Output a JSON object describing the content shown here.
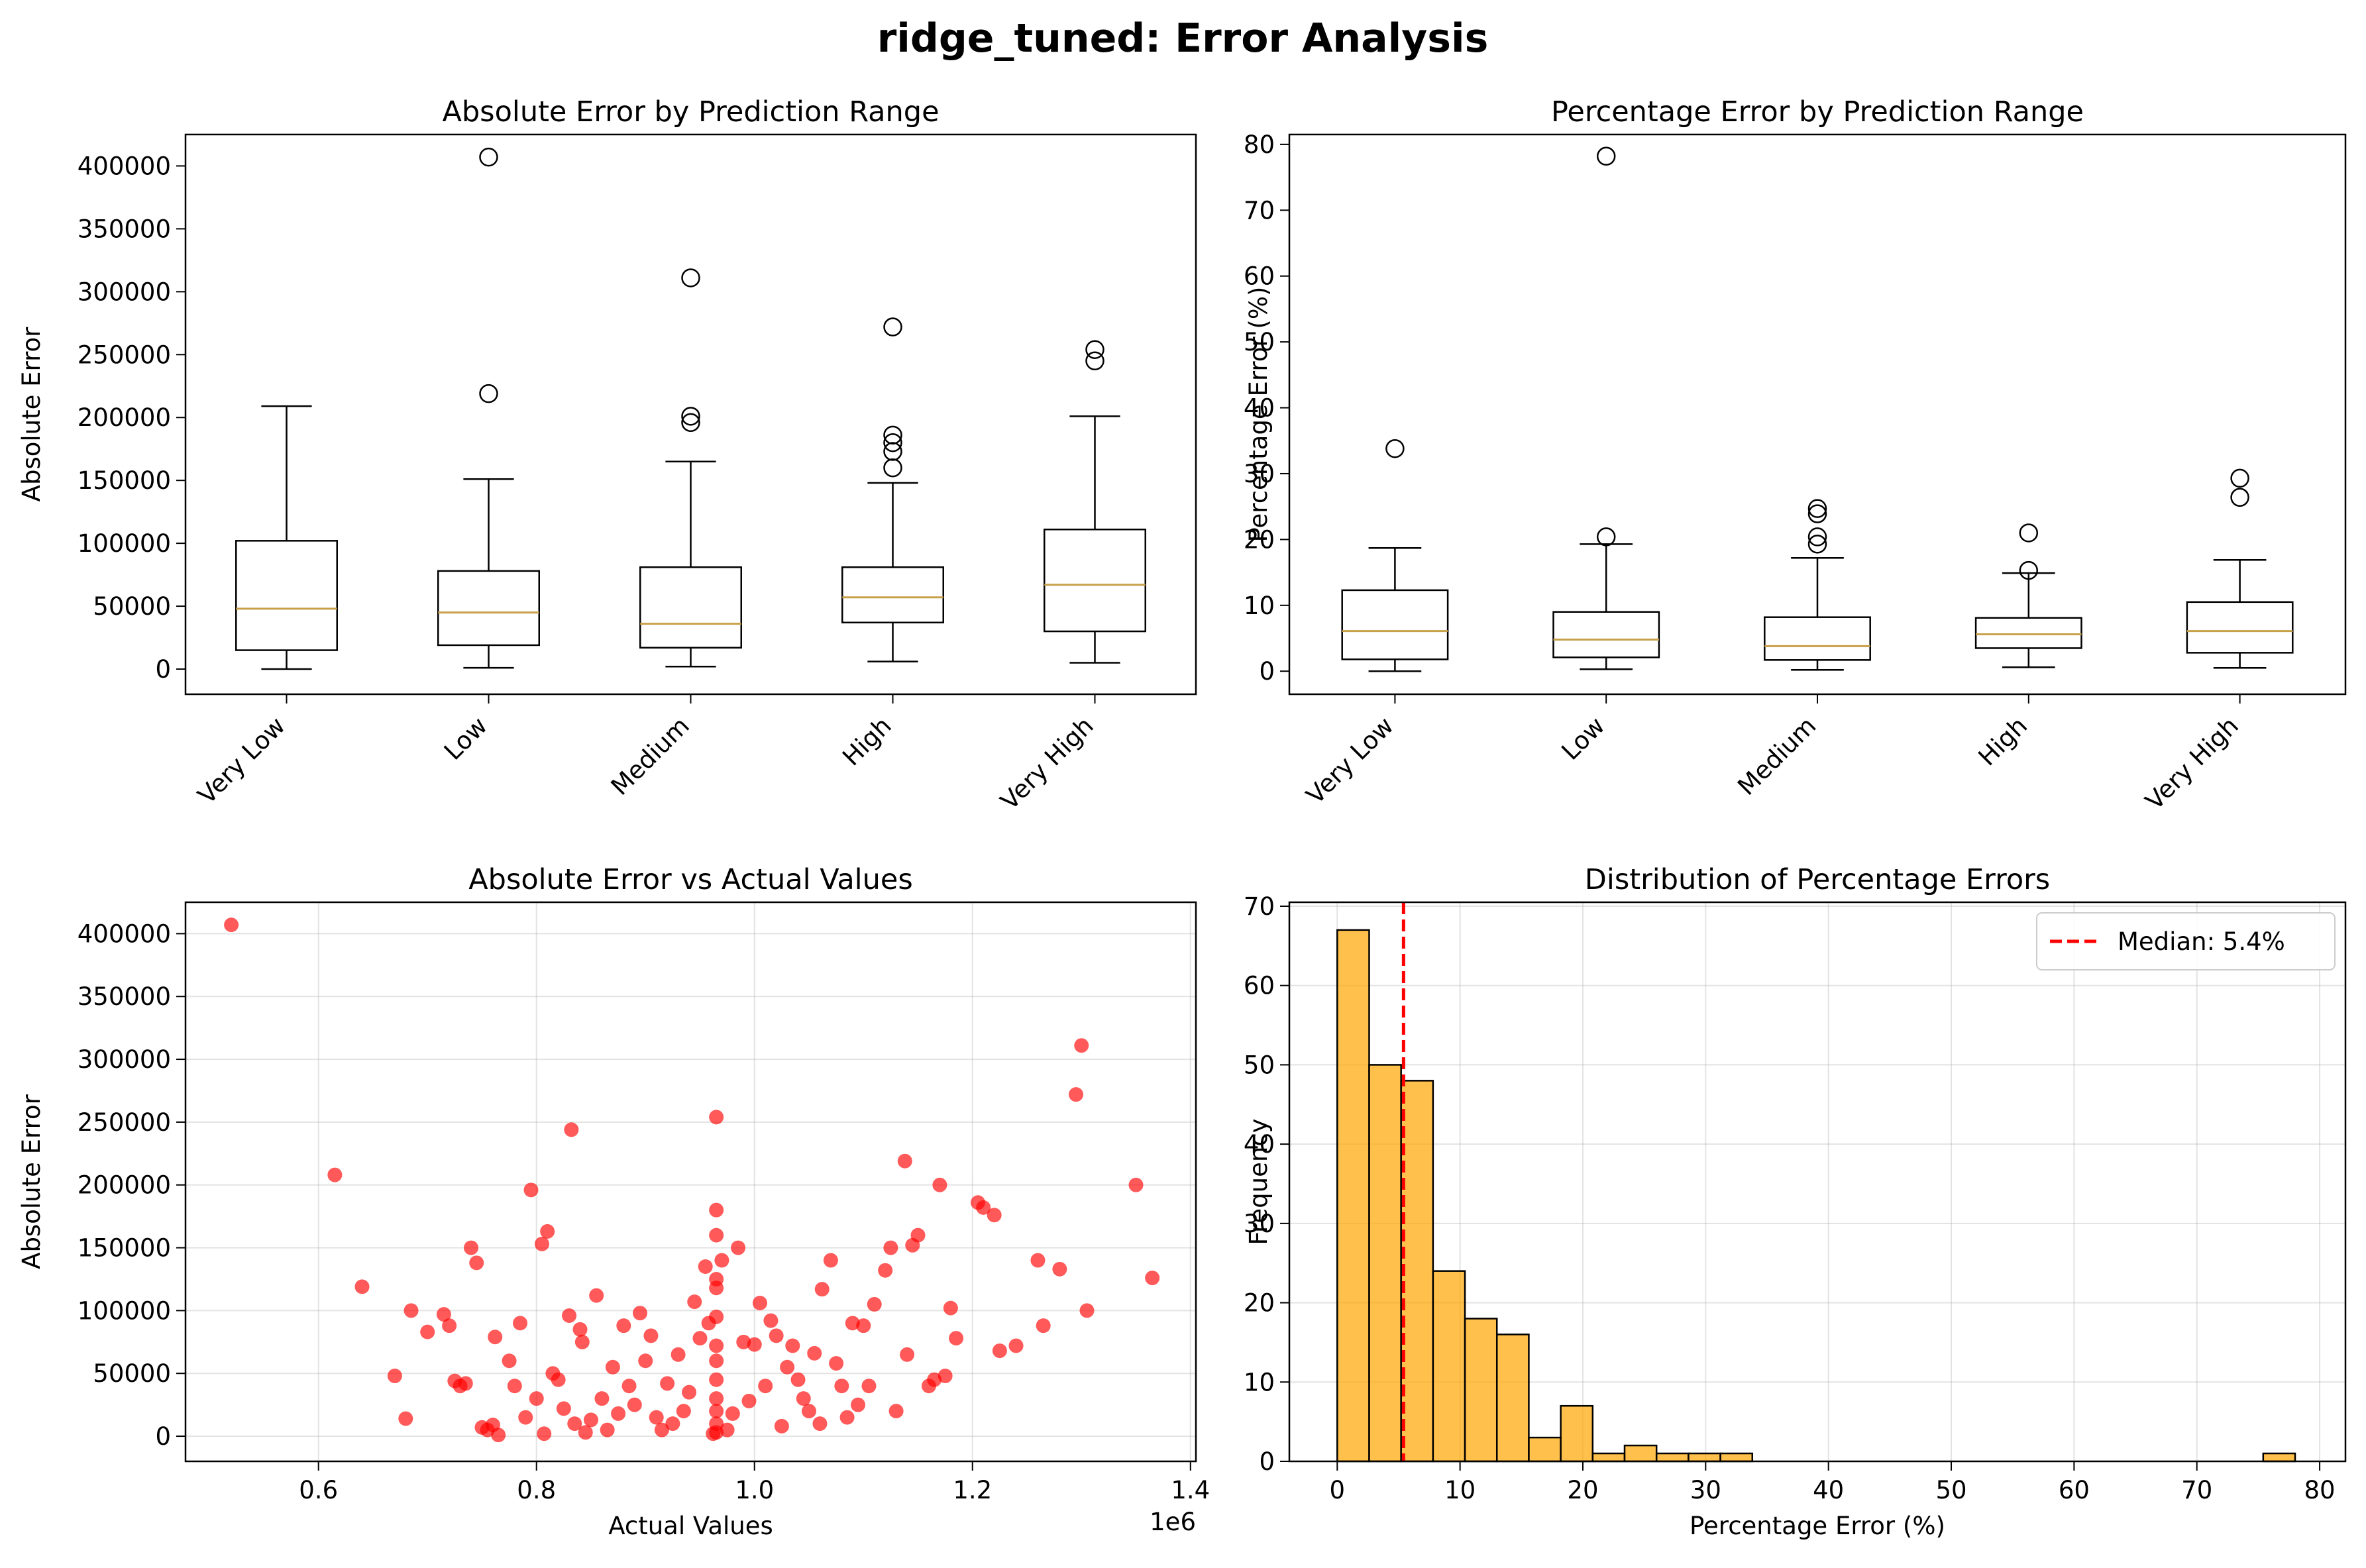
{
  "figure_title": "ridge_tuned: Error Analysis",
  "chart_data": [
    {
      "type": "box",
      "title": "Absolute Error by Prediction Range",
      "xlabel": "",
      "ylabel": "Absolute Error",
      "ylim": [
        -20000,
        425000
      ],
      "yticks": [
        0,
        50000,
        100000,
        150000,
        200000,
        250000,
        300000,
        350000,
        400000
      ],
      "grid": false,
      "categories": [
        "Very Low",
        "Low",
        "Medium",
        "High",
        "Very High"
      ],
      "boxes": [
        {
          "whislo": 0,
          "q1": 15000,
          "med": 48000,
          "q3": 102000,
          "whishi": 209000,
          "fliers": []
        },
        {
          "whislo": 1000,
          "q1": 19000,
          "med": 45000,
          "q3": 78000,
          "whishi": 151000,
          "fliers": [
            219000,
            407000
          ]
        },
        {
          "whislo": 2000,
          "q1": 17000,
          "med": 36000,
          "q3": 81000,
          "whishi": 165000,
          "fliers": [
            196000,
            201000,
            311000
          ]
        },
        {
          "whislo": 6000,
          "q1": 37000,
          "med": 57000,
          "q3": 81000,
          "whishi": 148000,
          "fliers": [
            160000,
            173000,
            180000,
            186000,
            272000
          ]
        },
        {
          "whislo": 5000,
          "q1": 30000,
          "med": 67000,
          "q3": 111000,
          "whishi": 201000,
          "fliers": [
            245000,
            254000
          ]
        }
      ]
    },
    {
      "type": "box",
      "title": "Percentage Error by Prediction Range",
      "xlabel": "",
      "ylabel": "Percentage Error (%)",
      "ylim": [
        -3.5,
        81.5
      ],
      "yticks": [
        0,
        10,
        20,
        30,
        40,
        50,
        60,
        70,
        80
      ],
      "grid": false,
      "categories": [
        "Very Low",
        "Low",
        "Medium",
        "High",
        "Very High"
      ],
      "boxes": [
        {
          "whislo": 0,
          "q1": 1.8,
          "med": 6.1,
          "q3": 12.3,
          "whishi": 18.7,
          "fliers": [
            33.8
          ]
        },
        {
          "whislo": 0.3,
          "q1": 2.1,
          "med": 4.8,
          "q3": 9.0,
          "whishi": 19.3,
          "fliers": [
            20.4,
            78.2
          ]
        },
        {
          "whislo": 0.2,
          "q1": 1.7,
          "med": 3.8,
          "q3": 8.2,
          "whishi": 17.2,
          "fliers": [
            19.3,
            20.4,
            23.9,
            24.7
          ]
        },
        {
          "whislo": 0.6,
          "q1": 3.5,
          "med": 5.6,
          "q3": 8.1,
          "whishi": 14.9,
          "fliers": [
            15.3,
            21.0
          ]
        },
        {
          "whislo": 0.5,
          "q1": 2.8,
          "med": 6.1,
          "q3": 10.5,
          "whishi": 16.9,
          "fliers": [
            26.4,
            29.3
          ]
        }
      ]
    },
    {
      "type": "scatter",
      "title": "Absolute Error vs Actual Values",
      "xlabel": "Actual Values",
      "ylabel": "Absolute Error",
      "x_scale_label": "1e6",
      "xlim": [
        0.478,
        1.405
      ],
      "ylim": [
        -20000,
        425000
      ],
      "xticks": [
        0.6,
        0.8,
        1.0,
        1.2,
        1.4
      ],
      "xtick_labels": [
        "0.6",
        "0.8",
        "1.0",
        "1.2",
        "1.4"
      ],
      "yticks": [
        0,
        50000,
        100000,
        150000,
        200000,
        250000,
        300000,
        350000,
        400000
      ],
      "grid": true,
      "color": "#ff0000",
      "points": [
        [
          0.52,
          407000
        ],
        [
          0.615,
          208000
        ],
        [
          0.64,
          119000
        ],
        [
          0.67,
          48000
        ],
        [
          0.68,
          14000
        ],
        [
          0.685,
          100000
        ],
        [
          0.7,
          83000
        ],
        [
          0.715,
          97000
        ],
        [
          0.72,
          88000
        ],
        [
          0.725,
          44000
        ],
        [
          0.73,
          40000
        ],
        [
          0.735,
          42000
        ],
        [
          0.74,
          150000
        ],
        [
          0.745,
          138000
        ],
        [
          0.75,
          7000
        ],
        [
          0.755,
          5000
        ],
        [
          0.76,
          9000
        ],
        [
          0.762,
          79000
        ],
        [
          0.765,
          1000
        ],
        [
          0.775,
          60000
        ],
        [
          0.78,
          40000
        ],
        [
          0.785,
          90000
        ],
        [
          0.79,
          15000
        ],
        [
          0.795,
          196000
        ],
        [
          0.8,
          30000
        ],
        [
          0.805,
          153000
        ],
        [
          0.807,
          2000
        ],
        [
          0.81,
          163000
        ],
        [
          0.815,
          50000
        ],
        [
          0.82,
          45000
        ],
        [
          0.825,
          22000
        ],
        [
          0.83,
          96000
        ],
        [
          0.832,
          244000
        ],
        [
          0.835,
          10000
        ],
        [
          0.84,
          85000
        ],
        [
          0.842,
          75000
        ],
        [
          0.845,
          3000
        ],
        [
          0.85,
          13000
        ],
        [
          0.855,
          112000
        ],
        [
          0.86,
          30000
        ],
        [
          0.865,
          5000
        ],
        [
          0.87,
          55000
        ],
        [
          0.875,
          18000
        ],
        [
          0.88,
          88000
        ],
        [
          0.885,
          40000
        ],
        [
          0.89,
          25000
        ],
        [
          0.895,
          98000
        ],
        [
          0.9,
          60000
        ],
        [
          0.905,
          80000
        ],
        [
          0.91,
          15000
        ],
        [
          0.915,
          5000
        ],
        [
          0.92,
          42000
        ],
        [
          0.925,
          10000
        ],
        [
          0.93,
          65000
        ],
        [
          0.935,
          20000
        ],
        [
          0.94,
          35000
        ],
        [
          0.945,
          107000
        ],
        [
          0.95,
          78000
        ],
        [
          0.955,
          135000
        ],
        [
          0.958,
          90000
        ],
        [
          0.962,
          2000
        ],
        [
          0.965,
          254000
        ],
        [
          0.965,
          180000
        ],
        [
          0.965,
          160000
        ],
        [
          0.965,
          125000
        ],
        [
          0.965,
          118000
        ],
        [
          0.965,
          95000
        ],
        [
          0.965,
          72000
        ],
        [
          0.965,
          60000
        ],
        [
          0.965,
          45000
        ],
        [
          0.965,
          30000
        ],
        [
          0.965,
          20000
        ],
        [
          0.965,
          10000
        ],
        [
          0.965,
          3000
        ],
        [
          0.97,
          140000
        ],
        [
          0.975,
          5000
        ],
        [
          0.98,
          18000
        ],
        [
          0.985,
          150000
        ],
        [
          0.99,
          75000
        ],
        [
          0.995,
          28000
        ],
        [
          1.0,
          73000
        ],
        [
          1.005,
          106000
        ],
        [
          1.01,
          40000
        ],
        [
          1.015,
          92000
        ],
        [
          1.02,
          80000
        ],
        [
          1.025,
          8000
        ],
        [
          1.03,
          55000
        ],
        [
          1.035,
          72000
        ],
        [
          1.04,
          45000
        ],
        [
          1.045,
          30000
        ],
        [
          1.05,
          20000
        ],
        [
          1.055,
          66000
        ],
        [
          1.06,
          10000
        ],
        [
          1.062,
          117000
        ],
        [
          1.07,
          140000
        ],
        [
          1.075,
          58000
        ],
        [
          1.08,
          40000
        ],
        [
          1.085,
          15000
        ],
        [
          1.09,
          90000
        ],
        [
          1.095,
          25000
        ],
        [
          1.1,
          88000
        ],
        [
          1.105,
          40000
        ],
        [
          1.11,
          105000
        ],
        [
          1.12,
          132000
        ],
        [
          1.125,
          150000
        ],
        [
          1.13,
          20000
        ],
        [
          1.138,
          219000
        ],
        [
          1.14,
          65000
        ],
        [
          1.145,
          152000
        ],
        [
          1.15,
          160000
        ],
        [
          1.16,
          40000
        ],
        [
          1.165,
          45000
        ],
        [
          1.17,
          200000
        ],
        [
          1.175,
          48000
        ],
        [
          1.18,
          102000
        ],
        [
          1.185,
          78000
        ],
        [
          1.205,
          186000
        ],
        [
          1.21,
          182000
        ],
        [
          1.22,
          176000
        ],
        [
          1.225,
          68000
        ],
        [
          1.24,
          72000
        ],
        [
          1.26,
          140000
        ],
        [
          1.265,
          88000
        ],
        [
          1.28,
          133000
        ],
        [
          1.295,
          272000
        ],
        [
          1.3,
          311000
        ],
        [
          1.305,
          100000
        ],
        [
          1.35,
          200000
        ],
        [
          1.365,
          126000
        ]
      ]
    },
    {
      "type": "histogram",
      "title": "Distribution of Percentage Errors",
      "xlabel": "Percentage Error (%)",
      "ylabel": "Frequency",
      "xlim": [
        -3.9,
        82.1
      ],
      "ylim": [
        0,
        70.5
      ],
      "xticks": [
        0,
        10,
        20,
        30,
        40,
        50,
        60,
        70,
        80
      ],
      "yticks": [
        0,
        10,
        20,
        30,
        40,
        50,
        60,
        70
      ],
      "grid": true,
      "bar_color": "#ffa500",
      "bin_width": 2.6,
      "bin_start": 0,
      "counts": [
        67,
        50,
        48,
        24,
        18,
        16,
        3,
        7,
        1,
        2,
        1,
        1,
        1,
        0,
        0,
        0,
        0,
        0,
        0,
        0,
        0,
        0,
        0,
        0,
        0,
        0,
        0,
        0,
        0,
        1
      ],
      "median": 5.4,
      "legend_label": "Median: 5.4%",
      "legend_position": "upper right",
      "median_color": "#ff0000"
    }
  ]
}
